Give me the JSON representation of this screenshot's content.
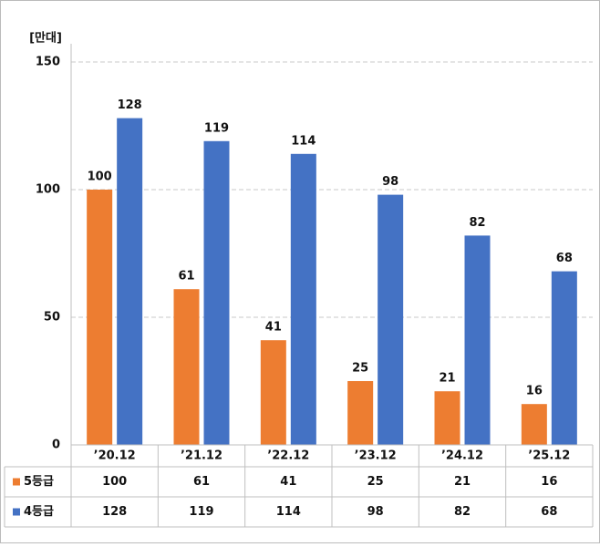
{
  "chart_data": {
    "type": "bar",
    "y_label": "[만대]",
    "categories": [
      "’20.12",
      "’21.12",
      "’22.12",
      "’23.12",
      "’24.12",
      "’25.12"
    ],
    "series": [
      {
        "name": "5등급",
        "color": "#ed7d31",
        "values": [
          100,
          61,
          41,
          25,
          21,
          16
        ]
      },
      {
        "name": "4등급",
        "color": "#4472c4",
        "values": [
          128,
          119,
          114,
          98,
          82,
          68
        ]
      }
    ],
    "ylim": [
      0,
      150
    ],
    "yticks": [
      0,
      50,
      100,
      150
    ],
    "grid": true,
    "data_table": true
  }
}
